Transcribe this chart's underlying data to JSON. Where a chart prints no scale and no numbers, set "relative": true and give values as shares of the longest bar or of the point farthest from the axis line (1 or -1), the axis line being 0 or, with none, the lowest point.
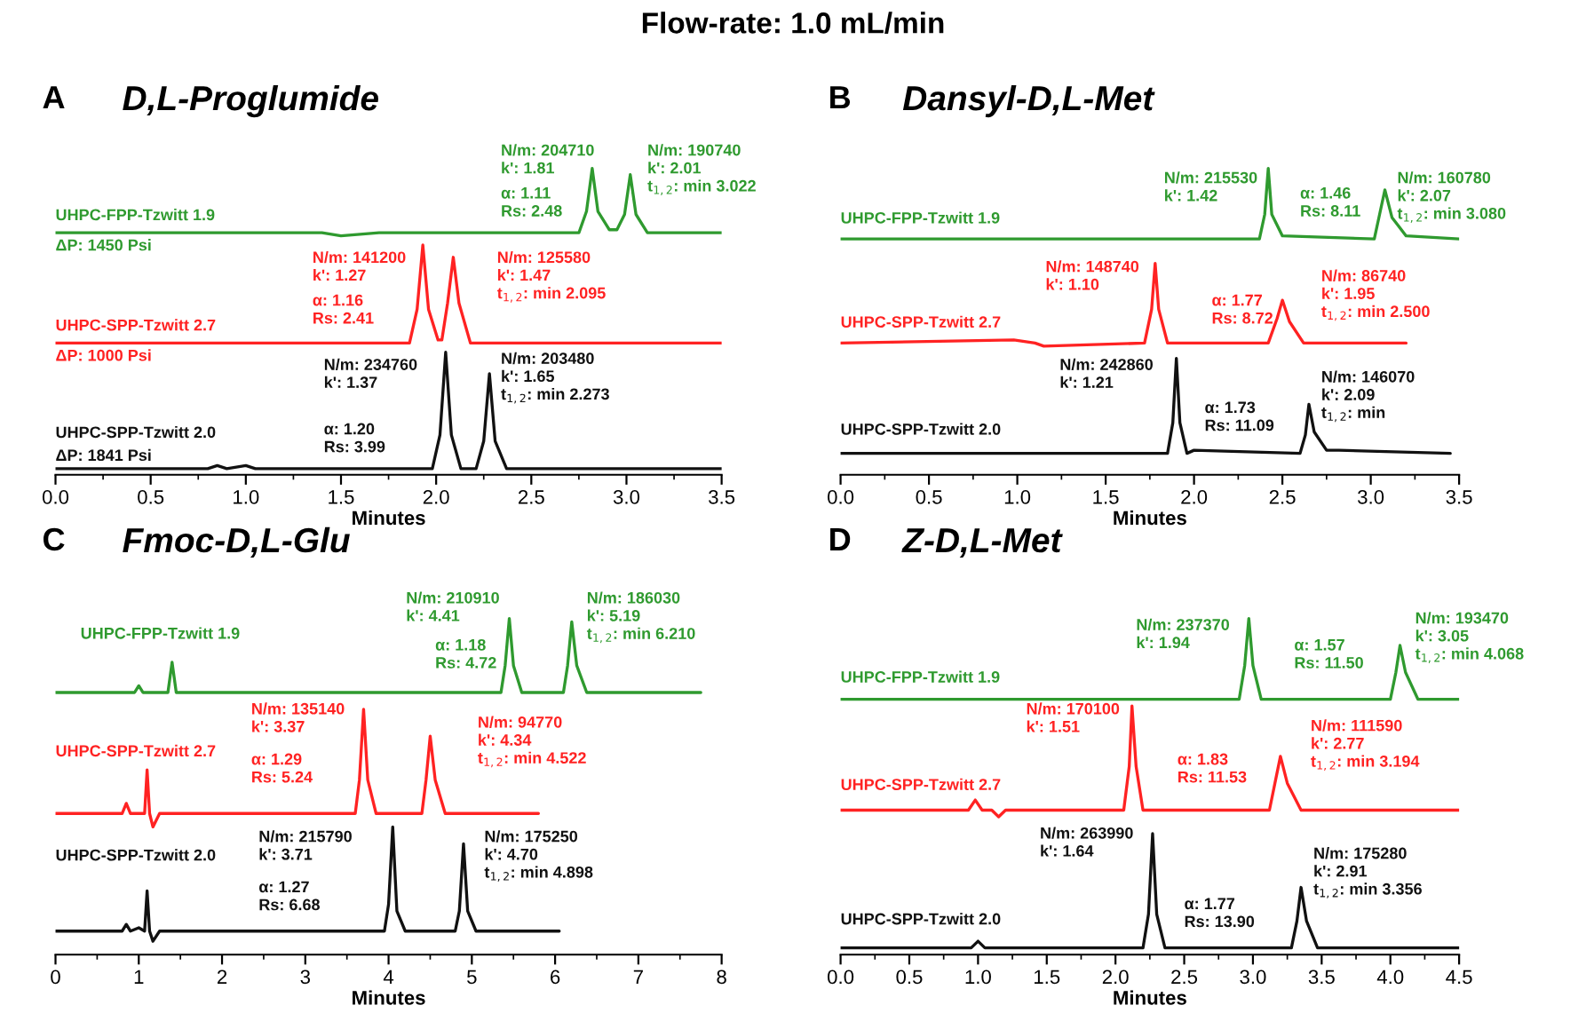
{
  "chart_data": [
    {
      "type": "line",
      "title": "D,L-Proglumide",
      "subtitle": "Flow-rate: 1.0 mL/min",
      "xlabel": "Minutes",
      "relative": true,
      "tick_labels": "x",
      "xlim": [
        0,
        3.5
      ],
      "xticks": [
        {
          "value": 0,
          "label": "0.0"
        },
        0.5,
        {
          "value": 1,
          "label": "1.0"
        },
        1.5,
        {
          "value": 2,
          "label": "2.0"
        },
        2.5,
        {
          "value": 3,
          "label": "3.0"
        },
        3.5
      ],
      "series": [
        {
          "name": "UHPC-FPP-Tzwitt 1.9",
          "color": "#2f9a2f",
          "x": [
            0,
            1.4,
            1.5,
            1.7,
            2.75,
            2.79,
            2.82,
            2.85,
            2.91,
            2.95,
            2.99,
            3.02,
            3.05,
            3.11,
            3.5
          ],
          "values": [
            0.79,
            0.79,
            0.78,
            0.79,
            0.79,
            0.86,
            1.0,
            0.86,
            0.8,
            0.8,
            0.85,
            0.98,
            0.85,
            0.79,
            0.79
          ]
        },
        {
          "name": "UHPC-SPP-Tzwitt 2.7",
          "color": "#ff2222",
          "x": [
            0,
            1.86,
            1.9,
            1.93,
            1.96,
            2.01,
            2.03,
            2.06,
            2.09,
            2.12,
            2.18,
            3.5
          ],
          "values": [
            0.43,
            0.43,
            0.54,
            0.75,
            0.54,
            0.44,
            0.44,
            0.56,
            0.71,
            0.56,
            0.43,
            0.43
          ]
        },
        {
          "name": "UHPC-SPP-Tzwitt 2.0",
          "color": "#111111",
          "x": [
            0,
            0.8,
            0.85,
            0.9,
            1.0,
            1.05,
            1.98,
            2.02,
            2.05,
            2.08,
            2.13,
            2.21,
            2.25,
            2.28,
            2.31,
            2.37,
            3.5
          ],
          "values": [
            0.02,
            0.02,
            0.03,
            0.02,
            0.03,
            0.02,
            0.02,
            0.13,
            0.4,
            0.13,
            0.02,
            0.02,
            0.11,
            0.33,
            0.11,
            0.02,
            0.02
          ]
        }
      ],
      "annotations": [
        "A",
        "N/m: 204710\nk': 1.81",
        "N/m: 190740\nk': 2.01\nt$_{1,2}$: min 3.022",
        "α: 1.11\nRs: 2.48",
        "ΔP: 1450 Psi",
        "N/m: 141200\nk': 1.27",
        "N/m: 125580\nk': 1.47\nt$_{1,2}$: min 2.095",
        "α: 1.16\nRs: 2.41",
        "ΔP: 1000 Psi",
        "N/m: 234760\nk': 1.37",
        "N/m: 203480\nk': 1.65\nt$_{1,2}$: min 2.273",
        "α: 1.20\nRs: 3.99",
        "ΔP: 1841 Psi"
      ]
    },
    {
      "type": "line",
      "title": "Dansyl-D,L-Met",
      "xlabel": "Minutes",
      "relative": true,
      "tick_labels": "x",
      "xlim": [
        0,
        3.5
      ],
      "xticks": [
        {
          "value": 0,
          "label": "0.0"
        },
        0.5,
        {
          "value": 1,
          "label": "1.0"
        },
        1.5,
        {
          "value": 2,
          "label": "2.0"
        },
        2.5,
        {
          "value": 3,
          "label": "3.0"
        },
        3.5
      ],
      "series": [
        {
          "name": "UHPC-FPP-Tzwitt 1.9",
          "color": "#2f9a2f",
          "x": [
            0,
            2.37,
            2.4,
            2.42,
            2.44,
            2.5,
            3.02,
            3.05,
            3.08,
            3.12,
            3.2,
            3.5
          ],
          "values": [
            0.77,
            0.77,
            0.85,
            1.0,
            0.85,
            0.78,
            0.77,
            0.85,
            0.93,
            0.84,
            0.78,
            0.77
          ]
        },
        {
          "name": "UHPC-SPP-Tzwitt 2.7",
          "color": "#ff2222",
          "x": [
            0,
            0.98,
            1.1,
            1.15,
            1.72,
            1.76,
            1.78,
            1.8,
            1.85,
            2.42,
            2.47,
            2.5,
            2.54,
            2.62,
            3.2
          ],
          "values": [
            0.43,
            0.44,
            0.43,
            0.42,
            0.43,
            0.54,
            0.69,
            0.54,
            0.43,
            0.43,
            0.51,
            0.57,
            0.5,
            0.43,
            0.43
          ]
        },
        {
          "name": "UHPC-SPP-Tzwitt 2.0",
          "color": "#111111",
          "x": [
            0,
            1.4,
            1.85,
            1.88,
            1.9,
            1.92,
            1.96,
            2.0,
            2.6,
            2.63,
            2.65,
            2.68,
            2.75,
            2.82,
            3.45
          ],
          "values": [
            0.07,
            0.07,
            0.07,
            0.17,
            0.38,
            0.17,
            0.07,
            0.08,
            0.07,
            0.13,
            0.23,
            0.14,
            0.08,
            0.08,
            0.07
          ]
        }
      ],
      "annotations": [
        "B",
        "N/m: 215530\nk': 1.42",
        "N/m: 160780\nk': 2.07\nt$_{1,2}$: min 3.080",
        "α: 1.46\nRs: 8.11",
        "N/m: 148740\nk': 1.10",
        "N/m: 86740\nk': 1.95\nt$_{1,2}$: min 2.500",
        "α: 1.77\nRs: 8.72",
        "N/m: 242860\nk': 1.21",
        "N/m: 146070\nk': 2.09\nt$_{1,2}$: min",
        "α: 1.73\nRs: 11.09"
      ]
    },
    {
      "type": "line",
      "title": "Fmoc-D,L-Glu",
      "xlabel": "Minutes",
      "relative": true,
      "tick_labels": "x",
      "xlim": [
        0,
        8
      ],
      "xticks": [
        0,
        1,
        2,
        3,
        4,
        5,
        6,
        7,
        8
      ],
      "series": [
        {
          "name": "UHPC-FPP-Tzwitt 1.9",
          "color": "#2f9a2f",
          "x": [
            0,
            0.95,
            1.0,
            1.05,
            1.35,
            1.4,
            1.45,
            5.35,
            5.4,
            5.45,
            5.5,
            5.6,
            6.1,
            6.15,
            6.2,
            6.26,
            6.38,
            7.75
          ],
          "values": [
            0.78,
            0.78,
            0.8,
            0.78,
            0.78,
            0.87,
            0.78,
            0.78,
            0.86,
            1.0,
            0.86,
            0.78,
            0.78,
            0.86,
            0.99,
            0.86,
            0.78,
            0.78
          ]
        },
        {
          "name": "UHPC-SPP-Tzwitt 2.7",
          "color": "#ff2222",
          "x": [
            0,
            0.8,
            0.85,
            0.9,
            1.07,
            1.1,
            1.13,
            1.17,
            1.25,
            3.6,
            3.65,
            3.7,
            3.75,
            3.85,
            4.4,
            4.45,
            4.5,
            4.56,
            4.68,
            5.8
          ],
          "values": [
            0.42,
            0.42,
            0.45,
            0.42,
            0.42,
            0.55,
            0.42,
            0.38,
            0.42,
            0.42,
            0.52,
            0.73,
            0.52,
            0.42,
            0.42,
            0.52,
            0.65,
            0.52,
            0.42,
            0.42
          ]
        },
        {
          "name": "UHPC-SPP-Tzwitt 2.0",
          "color": "#111111",
          "x": [
            0,
            0.8,
            0.85,
            0.9,
            1.0,
            1.07,
            1.1,
            1.13,
            1.17,
            1.25,
            3.95,
            4.0,
            4.05,
            4.1,
            4.2,
            4.8,
            4.85,
            4.9,
            4.95,
            5.05,
            6.05
          ],
          "values": [
            0.07,
            0.07,
            0.09,
            0.07,
            0.08,
            0.07,
            0.19,
            0.07,
            0.04,
            0.07,
            0.07,
            0.15,
            0.38,
            0.13,
            0.07,
            0.07,
            0.13,
            0.33,
            0.13,
            0.07,
            0.07
          ]
        }
      ],
      "annotations": [
        "C",
        "N/m: 210910\nk': 4.41",
        "N/m: 186030\nk': 5.19\nt$_{1,2}$: min 6.210",
        "α: 1.18\nRs: 4.72",
        "N/m: 135140\nk': 3.37",
        "N/m: 94770\nk': 4.34\nt$_{1,2}$: min 4.522",
        "α: 1.29\nRs: 5.24",
        "N/m: 215790\nk': 3.71",
        "N/m: 175250\nk': 4.70\nt$_{1,2}$: min 4.898",
        "α: 1.27\nRs: 6.68"
      ]
    },
    {
      "type": "line",
      "title": "Z-D,L-Met",
      "xlabel": "Minutes",
      "relative": true,
      "tick_labels": "x",
      "xlim": [
        0,
        4.5
      ],
      "xticks": [
        {
          "value": 0,
          "label": "0.0"
        },
        0.5,
        {
          "value": 1,
          "label": "1.0"
        },
        1.5,
        {
          "value": 2,
          "label": "2.0"
        },
        2.5,
        {
          "value": 3,
          "label": "3.0"
        },
        3.5,
        {
          "value": 4,
          "label": "4.0"
        },
        4.5
      ],
      "series": [
        {
          "name": "UHPC-FPP-Tzwitt 1.9",
          "color": "#2f9a2f",
          "x": [
            0,
            2.9,
            2.94,
            2.97,
            3.0,
            3.06,
            4.0,
            4.04,
            4.07,
            4.11,
            4.2,
            4.5
          ],
          "values": [
            0.76,
            0.76,
            0.86,
            1.0,
            0.86,
            0.76,
            0.76,
            0.84,
            0.92,
            0.84,
            0.76,
            0.76
          ]
        },
        {
          "name": "UHPC-SPP-Tzwitt 2.7",
          "color": "#ff2222",
          "x": [
            0,
            0.93,
            0.98,
            1.03,
            1.1,
            1.15,
            1.2,
            2.06,
            2.1,
            2.12,
            2.15,
            2.2,
            3.12,
            3.16,
            3.2,
            3.25,
            3.35,
            4.5
          ],
          "values": [
            0.43,
            0.43,
            0.46,
            0.43,
            0.43,
            0.41,
            0.43,
            0.43,
            0.56,
            0.74,
            0.56,
            0.43,
            0.43,
            0.51,
            0.59,
            0.51,
            0.43,
            0.43
          ]
        },
        {
          "name": "UHPC-SPP-Tzwitt 2.0",
          "color": "#111111",
          "x": [
            0,
            0.95,
            1.0,
            1.05,
            2.2,
            2.24,
            2.27,
            2.3,
            2.36,
            3.28,
            3.32,
            3.35,
            3.39,
            3.47,
            4.5
          ],
          "values": [
            0.02,
            0.02,
            0.04,
            0.02,
            0.02,
            0.12,
            0.36,
            0.12,
            0.02,
            0.02,
            0.1,
            0.2,
            0.1,
            0.02,
            0.02
          ]
        }
      ],
      "annotations": [
        "D",
        "N/m: 237370\nk': 1.94",
        "N/m: 193470\nk': 3.05\nt$_{1,2}$: min 4.068",
        "α: 1.57\nRs: 11.50",
        "N/m: 170100\nk': 1.51",
        "N/m: 111590\nk': 2.77\nt$_{1,2}$: min 3.194",
        "α: 1.83\nRs: 11.53",
        "N/m: 263990\nk': 1.64",
        "N/m: 175280\nk': 2.91\nt$_{1,2}$: min 3.356",
        "α: 1.77\nRs: 13.90"
      ]
    }
  ]
}
